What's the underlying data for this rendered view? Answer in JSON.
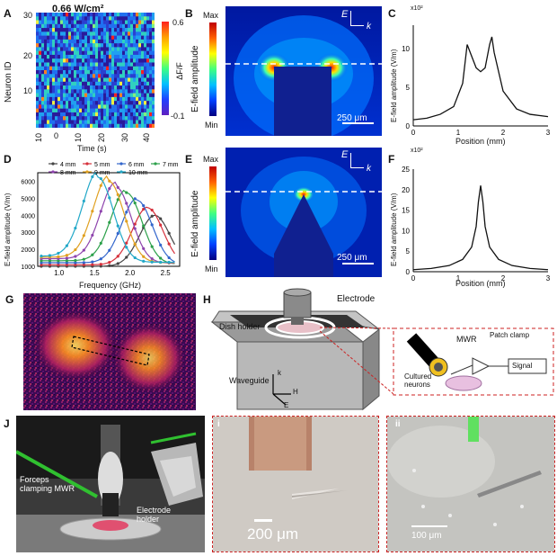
{
  "panels": {
    "A": {
      "letter": "A",
      "header": "0.66 W/cm²",
      "ylabel": "Neuron ID",
      "xlabel": "Time (s)",
      "yticks": [
        "30",
        "20",
        "10"
      ],
      "xticks": [
        "10",
        "0",
        "10",
        "20",
        "30",
        "40"
      ],
      "cbar": {
        "max": "0.6",
        "min": "-0.1",
        "label": "ΔF/F"
      }
    },
    "B": {
      "letter": "B",
      "ylabel": "E-field amplitude",
      "max": "Max",
      "min": "Min",
      "scale": "250 μm",
      "E": "E",
      "k": "k"
    },
    "C": {
      "letter": "C",
      "exp": "x10²",
      "yticks": [
        "10",
        "5",
        "0"
      ],
      "xticks": [
        "0",
        "1",
        "2",
        "3"
      ],
      "ylabel": "E-field amplitude (V/m)",
      "xlabel": "Position (mm)"
    },
    "D": {
      "letter": "D",
      "ylabel": "E-field amplitude (V/m)",
      "xlabel": "Frequency (GHz)",
      "yticks": [
        "6000",
        "5000",
        "4000",
        "3000",
        "2000",
        "1000"
      ],
      "xticks": [
        "1.0",
        "1.5",
        "2.0",
        "2.5"
      ]
    },
    "E": {
      "letter": "E",
      "ylabel": "E-field amplitude",
      "max": "Max",
      "min": "Min",
      "scale": "250 μm",
      "E": "E",
      "k": "k"
    },
    "F": {
      "letter": "F",
      "exp": "x10²",
      "yticks": [
        "25",
        "20",
        "15",
        "10",
        "5",
        "0"
      ],
      "xticks": [
        "0",
        "1",
        "2",
        "3"
      ],
      "ylabel": "E-field amplitude (V/m)",
      "xlabel": "Position (mm)"
    },
    "G": {
      "letter": "G"
    },
    "H": {
      "letter": "H",
      "electrode": "Electrode",
      "dish": "Dish holder",
      "waveguide": "Waveguide",
      "k": "k",
      "Hfield": "H",
      "E": "E",
      "mwr": "MWR",
      "patch": "Patch clamp",
      "signal": "Signal",
      "cultured": "Cultured\nneurons"
    },
    "J": {
      "letter": "J",
      "forceps": "Forceps\nclamping MWR",
      "holder": "Electrode\nholder"
    },
    "Ji": {
      "letter": "i",
      "scale": "200 μm"
    },
    "Jii": {
      "letter": "ii",
      "scale": "100 μm"
    }
  },
  "colors": {
    "blue": "#1a1aa8",
    "highlight": "#ffcc00",
    "dash": "#cc2222"
  },
  "chart_data": [
    {
      "type": "heatmap",
      "panel": "A",
      "title": "0.66 W/cm²",
      "xlabel": "Time (s)",
      "ylabel": "Neuron ID",
      "xlim": [
        -10,
        45
      ],
      "ylim": [
        0,
        30
      ],
      "zlim": [
        -0.1,
        0.6
      ],
      "colorbar_label": "ΔF/F"
    },
    {
      "type": "line",
      "panel": "C",
      "xlabel": "Position (mm)",
      "ylabel": "E-field amplitude (V/m)",
      "y_multiplier": "x10²",
      "xlim": [
        0,
        3
      ],
      "ylim": [
        0,
        13
      ],
      "series": [
        {
          "x": [
            0,
            0.3,
            0.6,
            0.9,
            1.1,
            1.2,
            1.3,
            1.4,
            1.5,
            1.6,
            1.7,
            1.75,
            1.8,
            2.0,
            2.3,
            2.6,
            3.0
          ],
          "y": [
            0.8,
            1.0,
            1.5,
            2.5,
            5.5,
            10.5,
            9.0,
            7.5,
            7.0,
            7.5,
            10.5,
            11.5,
            9.5,
            4.5,
            2.2,
            1.5,
            1.2
          ]
        }
      ]
    },
    {
      "type": "line",
      "panel": "D",
      "xlabel": "Frequency (GHz)",
      "ylabel": "E-field amplitude (V/m)",
      "xlim": [
        0.7,
        2.7
      ],
      "ylim": [
        1000,
        6500
      ],
      "series": [
        {
          "name": "4 mm",
          "peak_x": 2.35,
          "peak_y": 4000,
          "base": 1000,
          "width": 0.45,
          "color": "#444444"
        },
        {
          "name": "5 mm",
          "peak_x": 2.25,
          "peak_y": 4400,
          "base": 1300,
          "width": 0.45,
          "color": "#d6303b"
        },
        {
          "name": "6 mm",
          "peak_x": 2.1,
          "peak_y": 4800,
          "base": 1700,
          "width": 0.45,
          "color": "#3366cc"
        },
        {
          "name": "7 mm",
          "peak_x": 1.95,
          "peak_y": 5200,
          "base": 2100,
          "width": 0.45,
          "color": "#2ca04a"
        },
        {
          "name": "8 mm",
          "peak_x": 1.8,
          "peak_y": 5500,
          "base": 2500,
          "width": 0.45,
          "color": "#8e44ad"
        },
        {
          "name": "9 mm",
          "peak_x": 1.7,
          "peak_y": 5800,
          "base": 2800,
          "width": 0.45,
          "color": "#e0a020"
        },
        {
          "name": "10 mm",
          "peak_x": 1.55,
          "peak_y": 6000,
          "base": 3000,
          "width": 0.45,
          "color": "#22a8c8"
        }
      ]
    },
    {
      "type": "line",
      "panel": "F",
      "xlabel": "Position (mm)",
      "ylabel": "E-field amplitude (V/m)",
      "y_multiplier": "x10²",
      "xlim": [
        0,
        3
      ],
      "ylim": [
        0,
        25
      ],
      "series": [
        {
          "x": [
            0,
            0.4,
            0.8,
            1.1,
            1.3,
            1.4,
            1.45,
            1.5,
            1.55,
            1.6,
            1.7,
            1.9,
            2.2,
            2.6,
            3.0
          ],
          "y": [
            0.5,
            0.8,
            1.5,
            3,
            6,
            11,
            17,
            21,
            17,
            11,
            6,
            3,
            1.5,
            0.8,
            0.5
          ]
        }
      ]
    }
  ]
}
